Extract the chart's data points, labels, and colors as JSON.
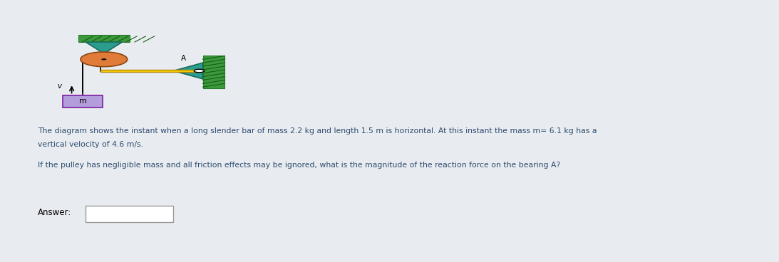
{
  "bg_color": "#e8ecf0",
  "panel_color": "#eef1f5",
  "text_color": "#2c4a6e",
  "title_line1": "The diagram shows the instant when a long slender bar of mass 2.2 kg and length 1.5 m is horizontal. At this instant the mass m= 6.1 kg has a",
  "title_line2": "vertical velocity of 4.6 m/s.",
  "question_line": "If the pulley has negligible mass and all friction effects may be ignored, what is the magnitude of the reaction force on the bearing A?",
  "answer_label": "Answer:",
  "fig_width": 10.93,
  "fig_height": 3.68,
  "topbar_color": "#adb5bd"
}
